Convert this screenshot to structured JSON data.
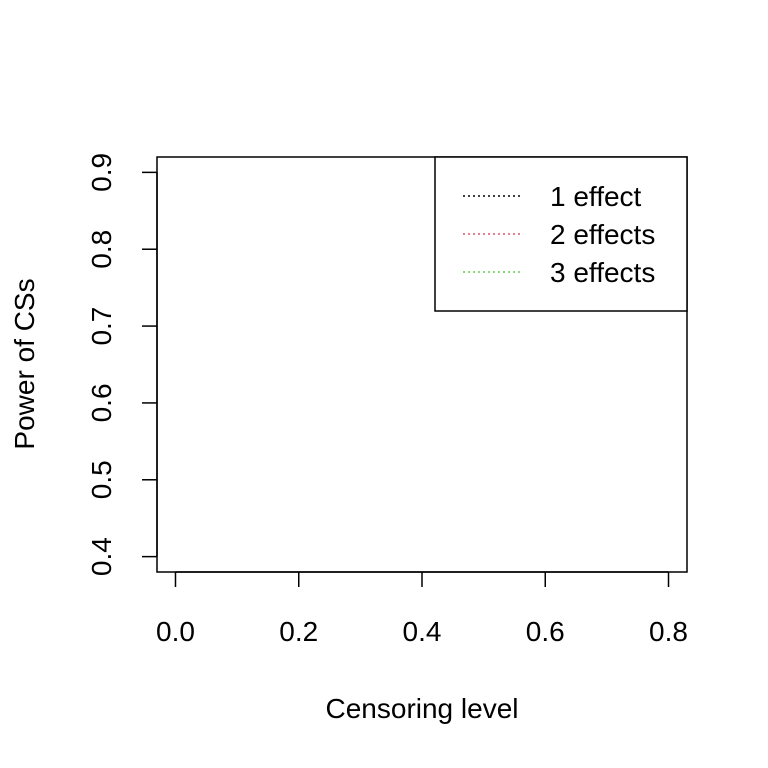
{
  "chart_data": {
    "type": "line",
    "title": "",
    "xlabel": "Censoring level",
    "ylabel": "Power of CSs",
    "xlim": [
      -0.03,
      0.83
    ],
    "ylim": [
      0.38,
      0.92
    ],
    "x_ticks": [
      0.0,
      0.2,
      0.4,
      0.6,
      0.8
    ],
    "x_tick_labels": [
      "0.0",
      "0.2",
      "0.4",
      "0.6",
      "0.8"
    ],
    "y_ticks": [
      0.4,
      0.5,
      0.6,
      0.7,
      0.8,
      0.9
    ],
    "y_tick_labels": [
      "0.4",
      "0.5",
      "0.6",
      "0.7",
      "0.8",
      "0.9"
    ],
    "grid": false,
    "legend_position": "top-right",
    "series": [
      {
        "name": "1 effect",
        "color": "#000000",
        "line_style": "dotted",
        "x": [],
        "y": []
      },
      {
        "name": "2 effects",
        "color": "#DF536B",
        "line_style": "dotted",
        "x": [],
        "y": []
      },
      {
        "name": "3 effects",
        "color": "#61D04F",
        "line_style": "dotted",
        "x": [],
        "y": []
      }
    ]
  }
}
